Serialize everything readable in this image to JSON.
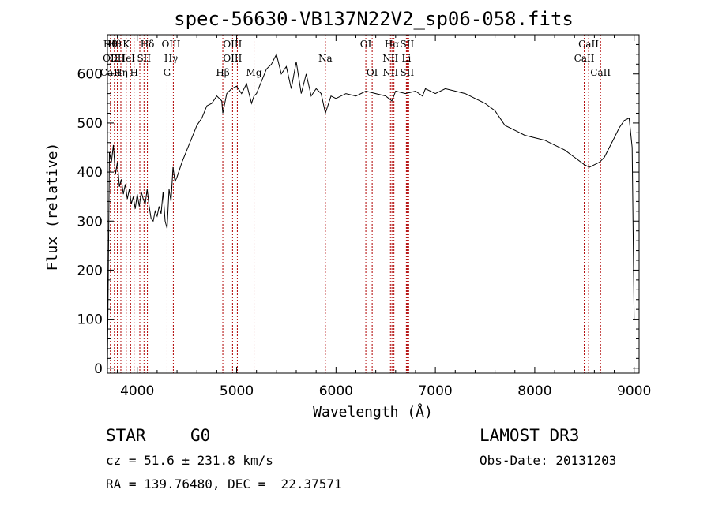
{
  "chart_data": {
    "type": "line",
    "title": "spec-56630-VB137N22V2_sp06-058.fits",
    "xlabel": "Wavelength (Å)",
    "ylabel": "Flux (relative)",
    "xlim": [
      3700,
      9050
    ],
    "ylim": [
      -10,
      680
    ],
    "xticks": [
      4000,
      5000,
      6000,
      7000,
      8000,
      9000
    ],
    "yticks": [
      0,
      100,
      200,
      300,
      400,
      500,
      600
    ],
    "grid": false,
    "series": [
      {
        "x": [
          3700,
          3720,
          3740,
          3760,
          3780,
          3800,
          3820,
          3840,
          3860,
          3880,
          3900,
          3920,
          3940,
          3960,
          3980,
          4000,
          4020,
          4040,
          4060,
          4080,
          4100,
          4120,
          4140,
          4160,
          4180,
          4200,
          4220,
          4240,
          4260,
          4280,
          4300,
          4320,
          4340,
          4360,
          4380,
          4400,
          4450,
          4500,
          4550,
          4600,
          4650,
          4700,
          4750,
          4800,
          4850,
          4861,
          4900,
          4950,
          5000,
          5050,
          5100,
          5150,
          5175,
          5200,
          5250,
          5300,
          5350,
          5400,
          5450,
          5500,
          5550,
          5600,
          5650,
          5700,
          5750,
          5800,
          5850,
          5893,
          5950,
          6000,
          6100,
          6200,
          6300,
          6400,
          6500,
          6563,
          6600,
          6700,
          6800,
          6870,
          6900,
          7000,
          7100,
          7200,
          7300,
          7400,
          7500,
          7600,
          7650,
          7700,
          7800,
          7900,
          8000,
          8100,
          8200,
          8300,
          8400,
          8500,
          8550,
          8600,
          8650,
          8700,
          8750,
          8800,
          8850,
          8900,
          8950,
          8980,
          9000
        ],
        "y": [
          0,
          440,
          420,
          455,
          395,
          420,
          370,
          385,
          355,
          375,
          345,
          365,
          335,
          350,
          325,
          355,
          330,
          360,
          345,
          335,
          365,
          330,
          305,
          300,
          320,
          310,
          330,
          315,
          360,
          300,
          285,
          365,
          340,
          410,
          380,
          390,
          420,
          445,
          470,
          495,
          510,
          535,
          540,
          555,
          545,
          520,
          560,
          570,
          575,
          560,
          580,
          540,
          555,
          560,
          585,
          610,
          620,
          640,
          600,
          615,
          570,
          625,
          560,
          600,
          555,
          570,
          560,
          520,
          555,
          550,
          560,
          555,
          565,
          560,
          555,
          545,
          565,
          560,
          565,
          555,
          570,
          560,
          570,
          565,
          560,
          550,
          540,
          525,
          510,
          495,
          485,
          475,
          470,
          465,
          455,
          445,
          430,
          415,
          410,
          415,
          420,
          430,
          450,
          470,
          490,
          505,
          510,
          450,
          100
        ]
      }
    ],
    "lines": [
      {
        "x": 3730,
        "labels": [
          "Hθ",
          "OII",
          "CaII"
        ]
      },
      {
        "x": 3770,
        "labels": [
          "Hθ",
          "",
          ""
        ]
      },
      {
        "x": 3800,
        "labels": [
          "",
          "OII",
          ""
        ]
      },
      {
        "x": 3835,
        "labels": [
          "",
          "",
          "Hη"
        ]
      },
      {
        "x": 3889,
        "labels": [
          "K",
          "HeI",
          ""
        ]
      },
      {
        "x": 3933,
        "labels": [
          "",
          "",
          ""
        ]
      },
      {
        "x": 3968,
        "labels": [
          "",
          "",
          "H"
        ]
      },
      {
        "x": 4026,
        "labels": [
          "",
          "",
          ""
        ]
      },
      {
        "x": 4068,
        "labels": [
          "",
          "SII",
          ""
        ]
      },
      {
        "x": 4102,
        "labels": [
          "Hδ",
          "",
          ""
        ]
      },
      {
        "x": 4300,
        "labels": [
          "",
          "",
          "G"
        ]
      },
      {
        "x": 4340,
        "labels": [
          "OIII",
          "Hγ",
          ""
        ]
      },
      {
        "x": 4363,
        "labels": [
          "",
          "",
          ""
        ]
      },
      {
        "x": 4861,
        "labels": [
          "",
          "",
          "Hβ"
        ]
      },
      {
        "x": 4959,
        "labels": [
          "OIII",
          "OIII",
          ""
        ]
      },
      {
        "x": 5007,
        "labels": [
          "",
          "",
          ""
        ]
      },
      {
        "x": 5175,
        "labels": [
          "",
          "",
          "Mg"
        ]
      },
      {
        "x": 5893,
        "labels": [
          "",
          "Na",
          ""
        ]
      },
      {
        "x": 6300,
        "labels": [
          "OI",
          "",
          ""
        ]
      },
      {
        "x": 6364,
        "labels": [
          "",
          "",
          "OI"
        ]
      },
      {
        "x": 6548,
        "labels": [
          "",
          "NII",
          "NII"
        ]
      },
      {
        "x": 6563,
        "labels": [
          "Hα",
          "",
          ""
        ]
      },
      {
        "x": 6583,
        "labels": [
          "",
          "",
          ""
        ]
      },
      {
        "x": 6708,
        "labels": [
          "",
          "Li",
          ""
        ]
      },
      {
        "x": 6716,
        "labels": [
          "SII",
          "",
          "SII"
        ]
      },
      {
        "x": 6731,
        "labels": [
          "",
          "",
          ""
        ]
      },
      {
        "x": 8498,
        "labels": [
          "",
          "CaII",
          ""
        ]
      },
      {
        "x": 8542,
        "labels": [
          "CaII",
          "",
          ""
        ]
      },
      {
        "x": 8662,
        "labels": [
          "",
          "",
          "CaII"
        ]
      }
    ]
  },
  "info": {
    "class": "STAR",
    "subclass": "G0",
    "survey": "LAMOST DR3",
    "redshift": "cz = 51.6 ± 231.8 km/s",
    "obs_date": "Obs-Date: 20131203",
    "coords": "RA = 139.76480, DEC =  22.37571"
  }
}
